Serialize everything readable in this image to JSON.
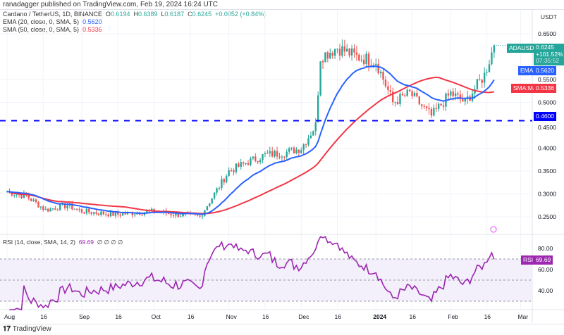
{
  "published": "ranadagger published on TradingView.com, Feb 19, 2024 16:24 UTC",
  "legend": {
    "symbol": "Cardano / TetherUS, 1D, BINANCE",
    "o_label": "O",
    "o": "0.6194",
    "h_label": "H",
    "h": "0.6389",
    "l_label": "L",
    "l": "0.6187",
    "c_label": "C",
    "c": "0.6245",
    "change": "+0.0052 (+0.84%)",
    "ema": "EMA (20, close, 0, SMA, 5)",
    "ema_val": "0.5620",
    "sma": "SMA (50, close, 0, SMA, 5)",
    "sma_val": "0.5336",
    "rsi": "RSI (14, close, SMA, 14, 2)",
    "rsi_val": "69.69",
    "rsi_extra": "∅ ∅ ∅ ∅"
  },
  "currency": "USDT",
  "tags": {
    "symbol": "ADAUSDT",
    "price": "0.6245",
    "pct": "+101.52%",
    "countdown": "07:35:52",
    "ema_label": "EMA",
    "ema": "0.5620",
    "sma_label": "SMA:MA",
    "sma": "0.5336",
    "support": "0.4600",
    "rsi_label": "RSI",
    "rsi": "69.69"
  },
  "colors": {
    "up": "#26a69a",
    "down": "#ef5350",
    "ema": "#2962ff",
    "sma": "#f23645",
    "support": "#0000ff",
    "rsi": "#9c27b0"
  },
  "brand": "TradingView",
  "chart_data": {
    "type": "candlestick",
    "title": "Cardano / TetherUS, 1D, BINANCE",
    "price_ticks": [
      "0.6500",
      "0.5500",
      "0.5000",
      "0.4500",
      "0.4000",
      "0.3500",
      "0.3000",
      "0.2500"
    ],
    "price_tick_values": [
      0.65,
      0.55,
      0.5,
      0.45,
      0.4,
      0.35,
      0.3,
      0.25
    ],
    "ylim": [
      0.22,
      0.69
    ],
    "support_level": 0.46,
    "date_ticks": [
      "Aug",
      "16",
      "Sep",
      "16",
      "Oct",
      "16",
      "Nov",
      "16",
      "Dec",
      "16",
      "2024",
      "16",
      "Feb",
      "16",
      "Mar"
    ],
    "date_tick_days": [
      0,
      15,
      31,
      46,
      61,
      76,
      92,
      107,
      122,
      137,
      153,
      168,
      184,
      199,
      213
    ],
    "close_keypoints_day_price": [
      [
        0,
        0.305
      ],
      [
        8,
        0.295
      ],
      [
        16,
        0.265
      ],
      [
        25,
        0.275
      ],
      [
        31,
        0.262
      ],
      [
        45,
        0.255
      ],
      [
        61,
        0.262
      ],
      [
        70,
        0.255
      ],
      [
        80,
        0.25
      ],
      [
        92,
        0.35
      ],
      [
        100,
        0.37
      ],
      [
        107,
        0.385
      ],
      [
        115,
        0.39
      ],
      [
        122,
        0.4
      ],
      [
        128,
        0.45
      ],
      [
        130,
        0.6
      ],
      [
        137,
        0.62
      ],
      [
        145,
        0.6
      ],
      [
        153,
        0.59
      ],
      [
        160,
        0.5
      ],
      [
        167,
        0.52
      ],
      [
        176,
        0.47
      ],
      [
        184,
        0.52
      ],
      [
        190,
        0.5
      ],
      [
        198,
        0.56
      ],
      [
        202,
        0.6245
      ]
    ],
    "rsi_ticks": [
      "80.00",
      "60.00",
      "40.00"
    ],
    "rsi_levels": [
      70,
      50,
      30
    ]
  }
}
